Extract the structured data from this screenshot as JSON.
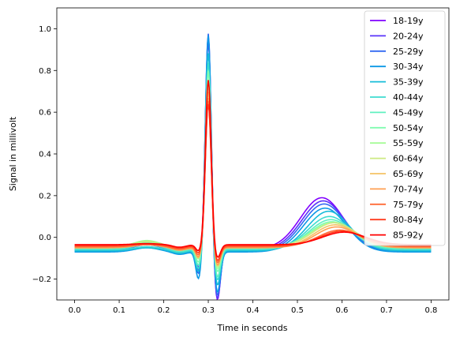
{
  "chart_data": {
    "type": "line",
    "title": "",
    "xlabel": "Time in seconds",
    "ylabel": "Signal in millivolt",
    "xlim": [
      -0.04,
      0.84
    ],
    "ylim": [
      -0.3,
      1.1
    ],
    "xticks": [
      "0.0",
      "0.1",
      "0.2",
      "0.3",
      "0.4",
      "0.5",
      "0.6",
      "0.7",
      "0.8"
    ],
    "yticks": [
      "−0.2",
      "0.0",
      "0.2",
      "0.4",
      "0.6",
      "0.8",
      "1.0"
    ],
    "grid": false,
    "legend_position": "upper-right",
    "series": [
      {
        "name": "18-19y",
        "color": "#8000ff",
        "base": -0.055,
        "p": 0.03,
        "q": -0.09,
        "r": 1.02,
        "s": -0.25,
        "t": 0.245,
        "t_center": 0.555,
        "r_center": 0.3
      },
      {
        "name": "20-24y",
        "color": "#5a34fa",
        "base": -0.06,
        "p": 0.025,
        "q": -0.1,
        "r": 1.0,
        "s": -0.24,
        "t": 0.235,
        "t_center": 0.558,
        "r_center": 0.3
      },
      {
        "name": "25-29y",
        "color": "#3269f2",
        "base": -0.065,
        "p": 0.02,
        "q": -0.11,
        "r": 1.045,
        "s": -0.22,
        "t": 0.225,
        "t_center": 0.56,
        "r_center": 0.3
      },
      {
        "name": "30-34y",
        "color": "#0c98e6",
        "base": -0.07,
        "p": 0.02,
        "q": -0.13,
        "r": 1.04,
        "s": -0.2,
        "t": 0.21,
        "t_center": 0.562,
        "r_center": 0.3
      },
      {
        "name": "35-39y",
        "color": "#18bcd9",
        "base": -0.065,
        "p": 0.015,
        "q": -0.1,
        "r": 0.95,
        "s": -0.17,
        "t": 0.19,
        "t_center": 0.57,
        "r_center": 0.3
      },
      {
        "name": "40-44y",
        "color": "#3edcd0",
        "base": -0.06,
        "p": 0.015,
        "q": -0.09,
        "r": 0.9,
        "s": -0.15,
        "t": 0.16,
        "t_center": 0.572,
        "r_center": 0.3
      },
      {
        "name": "45-49y",
        "color": "#60f0c0",
        "base": -0.055,
        "p": 0.02,
        "q": -0.08,
        "r": 0.86,
        "s": -0.14,
        "t": 0.14,
        "t_center": 0.575,
        "r_center": 0.3
      },
      {
        "name": "50-54y",
        "color": "#80fcb0",
        "base": -0.05,
        "p": 0.025,
        "q": -0.07,
        "r": 0.85,
        "s": -0.12,
        "t": 0.125,
        "t_center": 0.577,
        "r_center": 0.3
      },
      {
        "name": "55-59y",
        "color": "#a6fc97",
        "base": -0.045,
        "p": 0.03,
        "q": -0.06,
        "r": 0.8,
        "s": -0.11,
        "t": 0.115,
        "t_center": 0.58,
        "r_center": 0.3
      },
      {
        "name": "60-64y",
        "color": "#cde981",
        "base": -0.045,
        "p": 0.025,
        "q": -0.05,
        "r": 0.78,
        "s": -0.1,
        "t": 0.115,
        "t_center": 0.583,
        "r_center": 0.3
      },
      {
        "name": "65-69y",
        "color": "#f5c265",
        "base": -0.05,
        "p": 0.02,
        "q": -0.05,
        "r": 0.75,
        "s": -0.09,
        "t": 0.11,
        "t_center": 0.585,
        "r_center": 0.3
      },
      {
        "name": "70-74y",
        "color": "#ff9f52",
        "base": -0.05,
        "p": 0.015,
        "q": -0.045,
        "r": 0.72,
        "s": -0.085,
        "t": 0.1,
        "t_center": 0.588,
        "r_center": 0.3
      },
      {
        "name": "75-79y",
        "color": "#ff6b37",
        "base": -0.045,
        "p": 0.01,
        "q": -0.04,
        "r": 0.7,
        "s": -0.08,
        "t": 0.08,
        "t_center": 0.595,
        "r_center": 0.3
      },
      {
        "name": "80-84y",
        "color": "#ff3c1e",
        "base": -0.04,
        "p": 0.01,
        "q": -0.035,
        "r": 0.68,
        "s": -0.075,
        "t": 0.07,
        "t_center": 0.6,
        "r_center": 0.3
      },
      {
        "name": "85-92y",
        "color": "#ff0000",
        "base": -0.035,
        "p": 0.005,
        "q": -0.03,
        "r": 0.79,
        "s": -0.065,
        "t": 0.06,
        "t_center": 0.605,
        "r_center": 0.3
      }
    ]
  }
}
